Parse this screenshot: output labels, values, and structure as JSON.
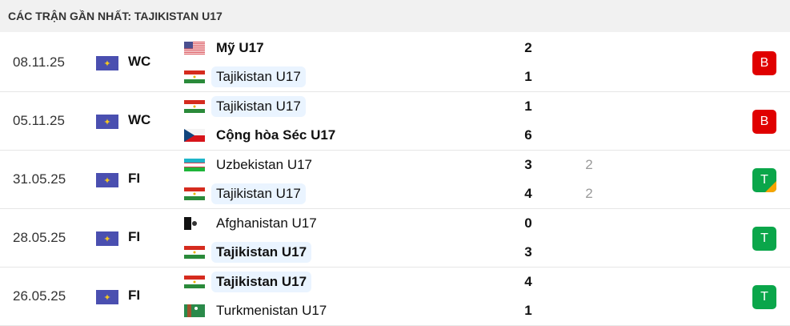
{
  "header": {
    "title": "CÁC TRẬN GẦN NHẤT: TAJIKISTAN U17"
  },
  "colors": {
    "lose": "#e00000",
    "win": "#0aa64a",
    "highlight": "#eaf4ff"
  },
  "matches": [
    {
      "date": "08.11.25",
      "competition": "WC",
      "home": {
        "name": "Mỹ U17",
        "flag": "us",
        "score": "2",
        "bold": true,
        "hl": false
      },
      "away": {
        "name": "Tajikistan U17",
        "flag": "tj",
        "score": "1",
        "bold": false,
        "hl": true
      },
      "result": "B",
      "result_type": "lose"
    },
    {
      "date": "05.11.25",
      "competition": "WC",
      "home": {
        "name": "Tajikistan U17",
        "flag": "tj",
        "score": "1",
        "bold": false,
        "hl": true
      },
      "away": {
        "name": "Cộng hòa Séc U17",
        "flag": "cz",
        "score": "6",
        "bold": true,
        "hl": false
      },
      "result": "B",
      "result_type": "lose"
    },
    {
      "date": "31.05.25",
      "competition": "FI",
      "home": {
        "name": "Uzbekistan U17",
        "flag": "uz",
        "score": "3",
        "pen": "2",
        "bold": false,
        "hl": false
      },
      "away": {
        "name": "Tajikistan U17",
        "flag": "tj",
        "score": "4",
        "pen": "2",
        "bold": false,
        "hl": true
      },
      "result": "T",
      "result_type": "win",
      "penalty_marker": true
    },
    {
      "date": "28.05.25",
      "competition": "FI",
      "home": {
        "name": "Afghanistan U17",
        "flag": "af",
        "score": "0",
        "bold": false,
        "hl": false
      },
      "away": {
        "name": "Tajikistan U17",
        "flag": "tj",
        "score": "3",
        "bold": true,
        "hl": true
      },
      "result": "T",
      "result_type": "win"
    },
    {
      "date": "26.05.25",
      "competition": "FI",
      "home": {
        "name": "Tajikistan U17",
        "flag": "tj",
        "score": "4",
        "bold": true,
        "hl": true
      },
      "away": {
        "name": "Turkmenistan U17",
        "flag": "tm",
        "score": "1",
        "bold": false,
        "hl": false
      },
      "result": "T",
      "result_type": "win"
    }
  ]
}
